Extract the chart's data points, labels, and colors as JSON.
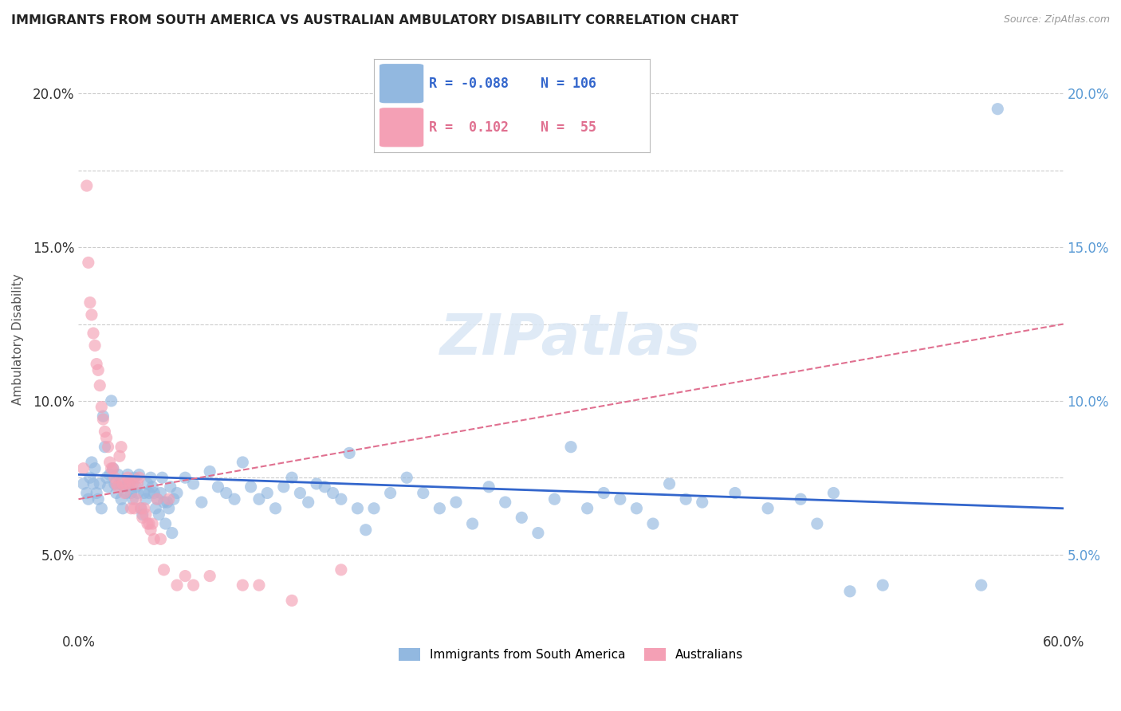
{
  "title": "IMMIGRANTS FROM SOUTH AMERICA VS AUSTRALIAN AMBULATORY DISABILITY CORRELATION CHART",
  "source": "Source: ZipAtlas.com",
  "ylabel": "Ambulatory Disability",
  "xlim": [
    0.0,
    0.6
  ],
  "ylim": [
    0.025,
    0.215
  ],
  "ytick_positions": [
    0.05,
    0.075,
    0.1,
    0.125,
    0.15,
    0.175,
    0.2
  ],
  "ytick_labels_left": [
    "5.0%",
    "",
    "10.0%",
    "",
    "15.0%",
    "",
    "20.0%"
  ],
  "ytick_labels_right": [
    "5.0%",
    "",
    "10.0%",
    "",
    "15.0%",
    "",
    "20.0%"
  ],
  "xtick_positions": [
    0.0,
    0.1,
    0.2,
    0.3,
    0.4,
    0.5,
    0.6
  ],
  "xtick_labels": [
    "0.0%",
    "",
    "",
    "",
    "",
    "",
    "60.0%"
  ],
  "blue_color": "#92b8e0",
  "pink_color": "#f4a0b5",
  "blue_line_color": "#3366cc",
  "pink_line_color": "#e07090",
  "watermark_text": "ZIPatlas",
  "blue_scatter": [
    [
      0.003,
      0.073
    ],
    [
      0.005,
      0.07
    ],
    [
      0.006,
      0.068
    ],
    [
      0.007,
      0.075
    ],
    [
      0.008,
      0.08
    ],
    [
      0.009,
      0.073
    ],
    [
      0.01,
      0.078
    ],
    [
      0.011,
      0.07
    ],
    [
      0.012,
      0.068
    ],
    [
      0.013,
      0.073
    ],
    [
      0.014,
      0.065
    ],
    [
      0.015,
      0.095
    ],
    [
      0.016,
      0.085
    ],
    [
      0.017,
      0.075
    ],
    [
      0.018,
      0.072
    ],
    [
      0.019,
      0.076
    ],
    [
      0.02,
      0.1
    ],
    [
      0.021,
      0.078
    ],
    [
      0.022,
      0.073
    ],
    [
      0.023,
      0.07
    ],
    [
      0.024,
      0.076
    ],
    [
      0.025,
      0.073
    ],
    [
      0.026,
      0.068
    ],
    [
      0.027,
      0.065
    ],
    [
      0.028,
      0.072
    ],
    [
      0.029,
      0.07
    ],
    [
      0.03,
      0.076
    ],
    [
      0.031,
      0.073
    ],
    [
      0.032,
      0.07
    ],
    [
      0.033,
      0.068
    ],
    [
      0.034,
      0.075
    ],
    [
      0.035,
      0.072
    ],
    [
      0.036,
      0.07
    ],
    [
      0.037,
      0.076
    ],
    [
      0.038,
      0.065
    ],
    [
      0.039,
      0.063
    ],
    [
      0.04,
      0.07
    ],
    [
      0.041,
      0.068
    ],
    [
      0.042,
      0.073
    ],
    [
      0.043,
      0.07
    ],
    [
      0.044,
      0.075
    ],
    [
      0.045,
      0.072
    ],
    [
      0.046,
      0.07
    ],
    [
      0.047,
      0.065
    ],
    [
      0.048,
      0.068
    ],
    [
      0.049,
      0.063
    ],
    [
      0.05,
      0.07
    ],
    [
      0.051,
      0.075
    ],
    [
      0.052,
      0.067
    ],
    [
      0.053,
      0.06
    ],
    [
      0.054,
      0.067
    ],
    [
      0.055,
      0.065
    ],
    [
      0.056,
      0.072
    ],
    [
      0.057,
      0.057
    ],
    [
      0.058,
      0.068
    ],
    [
      0.06,
      0.07
    ],
    [
      0.065,
      0.075
    ],
    [
      0.07,
      0.073
    ],
    [
      0.075,
      0.067
    ],
    [
      0.08,
      0.077
    ],
    [
      0.085,
      0.072
    ],
    [
      0.09,
      0.07
    ],
    [
      0.095,
      0.068
    ],
    [
      0.1,
      0.08
    ],
    [
      0.105,
      0.072
    ],
    [
      0.11,
      0.068
    ],
    [
      0.115,
      0.07
    ],
    [
      0.12,
      0.065
    ],
    [
      0.125,
      0.072
    ],
    [
      0.13,
      0.075
    ],
    [
      0.135,
      0.07
    ],
    [
      0.14,
      0.067
    ],
    [
      0.145,
      0.073
    ],
    [
      0.15,
      0.072
    ],
    [
      0.155,
      0.07
    ],
    [
      0.16,
      0.068
    ],
    [
      0.165,
      0.083
    ],
    [
      0.17,
      0.065
    ],
    [
      0.175,
      0.058
    ],
    [
      0.18,
      0.065
    ],
    [
      0.19,
      0.07
    ],
    [
      0.2,
      0.075
    ],
    [
      0.21,
      0.07
    ],
    [
      0.22,
      0.065
    ],
    [
      0.23,
      0.067
    ],
    [
      0.24,
      0.06
    ],
    [
      0.25,
      0.072
    ],
    [
      0.26,
      0.067
    ],
    [
      0.27,
      0.062
    ],
    [
      0.28,
      0.057
    ],
    [
      0.29,
      0.068
    ],
    [
      0.3,
      0.085
    ],
    [
      0.31,
      0.065
    ],
    [
      0.32,
      0.07
    ],
    [
      0.33,
      0.068
    ],
    [
      0.34,
      0.065
    ],
    [
      0.35,
      0.06
    ],
    [
      0.36,
      0.073
    ],
    [
      0.37,
      0.068
    ],
    [
      0.38,
      0.067
    ],
    [
      0.4,
      0.07
    ],
    [
      0.42,
      0.065
    ],
    [
      0.44,
      0.068
    ],
    [
      0.45,
      0.06
    ],
    [
      0.46,
      0.07
    ],
    [
      0.47,
      0.038
    ],
    [
      0.49,
      0.04
    ],
    [
      0.55,
      0.04
    ],
    [
      0.56,
      0.195
    ]
  ],
  "pink_scatter": [
    [
      0.003,
      0.078
    ],
    [
      0.005,
      0.17
    ],
    [
      0.006,
      0.145
    ],
    [
      0.007,
      0.132
    ],
    [
      0.008,
      0.128
    ],
    [
      0.009,
      0.122
    ],
    [
      0.01,
      0.118
    ],
    [
      0.011,
      0.112
    ],
    [
      0.012,
      0.11
    ],
    [
      0.013,
      0.105
    ],
    [
      0.014,
      0.098
    ],
    [
      0.015,
      0.094
    ],
    [
      0.016,
      0.09
    ],
    [
      0.017,
      0.088
    ],
    [
      0.018,
      0.085
    ],
    [
      0.019,
      0.08
    ],
    [
      0.02,
      0.078
    ],
    [
      0.021,
      0.078
    ],
    [
      0.022,
      0.075
    ],
    [
      0.023,
      0.073
    ],
    [
      0.024,
      0.072
    ],
    [
      0.025,
      0.082
    ],
    [
      0.026,
      0.085
    ],
    [
      0.027,
      0.073
    ],
    [
      0.028,
      0.07
    ],
    [
      0.029,
      0.073
    ],
    [
      0.03,
      0.075
    ],
    [
      0.031,
      0.073
    ],
    [
      0.032,
      0.065
    ],
    [
      0.033,
      0.073
    ],
    [
      0.034,
      0.065
    ],
    [
      0.035,
      0.068
    ],
    [
      0.036,
      0.073
    ],
    [
      0.037,
      0.075
    ],
    [
      0.038,
      0.065
    ],
    [
      0.039,
      0.062
    ],
    [
      0.04,
      0.065
    ],
    [
      0.041,
      0.063
    ],
    [
      0.042,
      0.06
    ],
    [
      0.043,
      0.06
    ],
    [
      0.044,
      0.058
    ],
    [
      0.045,
      0.06
    ],
    [
      0.046,
      0.055
    ],
    [
      0.048,
      0.068
    ],
    [
      0.05,
      0.055
    ],
    [
      0.052,
      0.045
    ],
    [
      0.055,
      0.068
    ],
    [
      0.06,
      0.04
    ],
    [
      0.065,
      0.043
    ],
    [
      0.07,
      0.04
    ],
    [
      0.08,
      0.043
    ],
    [
      0.1,
      0.04
    ],
    [
      0.11,
      0.04
    ],
    [
      0.13,
      0.035
    ],
    [
      0.16,
      0.045
    ]
  ],
  "blue_trend_x": [
    0.0,
    0.6
  ],
  "blue_trend_y": [
    0.076,
    0.065
  ],
  "pink_trend_x": [
    0.0,
    0.6
  ],
  "pink_trend_y": [
    0.068,
    0.125
  ]
}
